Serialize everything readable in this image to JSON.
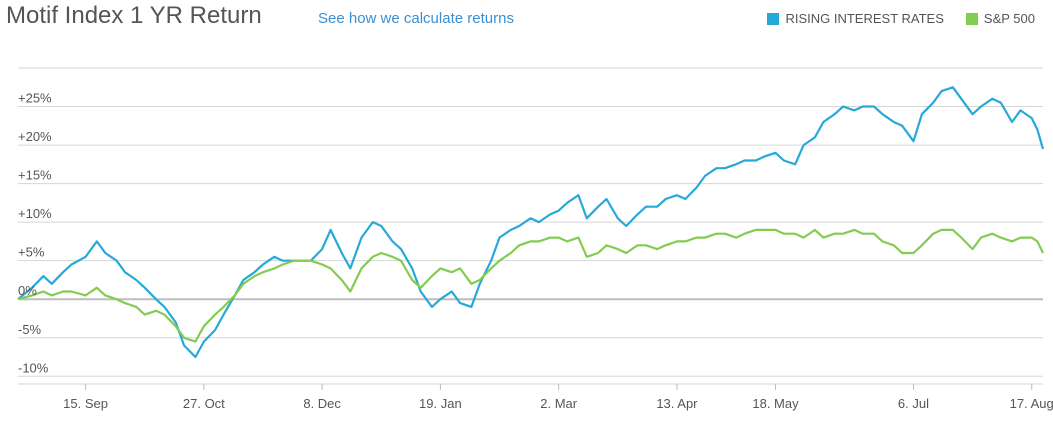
{
  "header": {
    "title": "Motif Index 1 YR Return",
    "link": "See how we calculate returns"
  },
  "colors": {
    "rising": "#27a9d8",
    "sp500": "#82cc52",
    "grid": "#d6d6d6",
    "zero_line": "#bdbdbd"
  },
  "chart_data": {
    "type": "line",
    "title": "Motif Index 1 YR Return",
    "xlabel": "",
    "ylabel": "",
    "ylim": [
      -11,
      30
    ],
    "yticks": [
      {
        "value": 25,
        "label": "+25%"
      },
      {
        "value": 20,
        "label": "+20%"
      },
      {
        "value": 15,
        "label": "+15%"
      },
      {
        "value": 10,
        "label": "+10%"
      },
      {
        "value": 5,
        "label": "+5%"
      },
      {
        "value": 0,
        "label": "0%"
      },
      {
        "value": -5,
        "label": "-5%"
      },
      {
        "value": -10,
        "label": "-10%"
      }
    ],
    "xrange": [
      "Aug 22",
      "Aug 21"
    ],
    "xticks": [
      {
        "date": "Sep 15",
        "label": "15. Sep"
      },
      {
        "date": "Oct 27",
        "label": "27. Oct"
      },
      {
        "date": "Dec 8",
        "label": "8. Dec"
      },
      {
        "date": "Jan 19",
        "label": "19. Jan"
      },
      {
        "date": "Mar 2",
        "label": "2. Mar"
      },
      {
        "date": "Apr 13",
        "label": "13. Apr"
      },
      {
        "date": "May 18",
        "label": "18. May"
      },
      {
        "date": "Jul 6",
        "label": "6. Jul"
      },
      {
        "date": "Aug 17",
        "label": "17. Aug"
      }
    ],
    "legend_position": "top-right",
    "grid": true,
    "series": [
      {
        "name": "RISING INTEREST RATES",
        "color": "#27a9d8",
        "points": [
          [
            "Aug 22",
            0
          ],
          [
            "Aug 27",
            1.5
          ],
          [
            "Aug 31",
            3
          ],
          [
            "Sep 3",
            2
          ],
          [
            "Sep 7",
            3.5
          ],
          [
            "Sep 10",
            4.5
          ],
          [
            "Sep 15",
            5.5
          ],
          [
            "Sep 19",
            7.5
          ],
          [
            "Sep 22",
            6
          ],
          [
            "Sep 26",
            5
          ],
          [
            "Sep 29",
            3.5
          ],
          [
            "Oct 3",
            2.5
          ],
          [
            "Oct 6",
            1.5
          ],
          [
            "Oct 10",
            0
          ],
          [
            "Oct 13",
            -1
          ],
          [
            "Oct 17",
            -3
          ],
          [
            "Oct 20",
            -6
          ],
          [
            "Oct 24",
            -7.5
          ],
          [
            "Oct 27",
            -5.5
          ],
          [
            "Oct 31",
            -4
          ],
          [
            "Nov 3",
            -2
          ],
          [
            "Nov 7",
            0.5
          ],
          [
            "Nov 10",
            2.5
          ],
          [
            "Nov 14",
            3.5
          ],
          [
            "Nov 17",
            4.5
          ],
          [
            "Nov 21",
            5.5
          ],
          [
            "Nov 24",
            5
          ],
          [
            "Nov 28",
            5
          ],
          [
            "Dec 1",
            5
          ],
          [
            "Dec 4",
            5
          ],
          [
            "Dec 8",
            6.5
          ],
          [
            "Dec 11",
            9
          ],
          [
            "Dec 15",
            6
          ],
          [
            "Dec 18",
            4
          ],
          [
            "Dec 22",
            8
          ],
          [
            "Dec 26",
            10
          ],
          [
            "Dec 29",
            9.5
          ],
          [
            "Jan 2",
            7.5
          ],
          [
            "Jan 5",
            6.5
          ],
          [
            "Jan 9",
            4
          ],
          [
            "Jan 12",
            1
          ],
          [
            "Jan 16",
            -1
          ],
          [
            "Jan 19",
            0
          ],
          [
            "Jan 23",
            1
          ],
          [
            "Jan 26",
            -0.5
          ],
          [
            "Jan 30",
            -1
          ],
          [
            "Feb 2",
            2
          ],
          [
            "Feb 6",
            5
          ],
          [
            "Feb 9",
            8
          ],
          [
            "Feb 13",
            9
          ],
          [
            "Feb 16",
            9.5
          ],
          [
            "Feb 20",
            10.5
          ],
          [
            "Feb 23",
            10
          ],
          [
            "Feb 27",
            11
          ],
          [
            "Mar 2",
            11.5
          ],
          [
            "Mar 5",
            12.5
          ],
          [
            "Mar 9",
            13.5
          ],
          [
            "Mar 12",
            10.5
          ],
          [
            "Mar 16",
            12
          ],
          [
            "Mar 19",
            13
          ],
          [
            "Mar 23",
            10.5
          ],
          [
            "Mar 26",
            9.5
          ],
          [
            "Mar 30",
            11
          ],
          [
            "Apr 2",
            12
          ],
          [
            "Apr 6",
            12
          ],
          [
            "Apr 9",
            13
          ],
          [
            "Apr 13",
            13.5
          ],
          [
            "Apr 16",
            13
          ],
          [
            "Apr 20",
            14.5
          ],
          [
            "Apr 23",
            16
          ],
          [
            "Apr 27",
            17
          ],
          [
            "Apr 30",
            17
          ],
          [
            "May 4",
            17.5
          ],
          [
            "May 7",
            18
          ],
          [
            "May 11",
            18
          ],
          [
            "May 14",
            18.5
          ],
          [
            "May 18",
            19
          ],
          [
            "May 21",
            18
          ],
          [
            "May 25",
            17.5
          ],
          [
            "May 28",
            20
          ],
          [
            "Jun 1",
            21
          ],
          [
            "Jun 4",
            23
          ],
          [
            "Jun 8",
            24
          ],
          [
            "Jun 11",
            25
          ],
          [
            "Jun 15",
            24.5
          ],
          [
            "Jun 18",
            25
          ],
          [
            "Jun 22",
            25
          ],
          [
            "Jun 25",
            24
          ],
          [
            "Jun 29",
            23
          ],
          [
            "Jul 2",
            22.5
          ],
          [
            "Jul 6",
            20.5
          ],
          [
            "Jul 9",
            24
          ],
          [
            "Jul 13",
            25.5
          ],
          [
            "Jul 16",
            27
          ],
          [
            "Jul 20",
            27.5
          ],
          [
            "Jul 23",
            26
          ],
          [
            "Jul 27",
            24
          ],
          [
            "Jul 30",
            25
          ],
          [
            "Aug 3",
            26
          ],
          [
            "Aug 6",
            25.5
          ],
          [
            "Aug 10",
            23
          ],
          [
            "Aug 13",
            24.5
          ],
          [
            "Aug 17",
            23.5
          ],
          [
            "Aug 19",
            22
          ],
          [
            "Aug 21",
            19.5
          ]
        ]
      },
      {
        "name": "S&P 500",
        "color": "#82cc52",
        "points": [
          [
            "Aug 22",
            0
          ],
          [
            "Aug 27",
            0.5
          ],
          [
            "Aug 31",
            1
          ],
          [
            "Sep 3",
            0.5
          ],
          [
            "Sep 7",
            1
          ],
          [
            "Sep 10",
            1
          ],
          [
            "Sep 15",
            0.5
          ],
          [
            "Sep 19",
            1.5
          ],
          [
            "Sep 22",
            0.5
          ],
          [
            "Sep 26",
            0
          ],
          [
            "Sep 29",
            -0.5
          ],
          [
            "Oct 3",
            -1
          ],
          [
            "Oct 6",
            -2
          ],
          [
            "Oct 10",
            -1.5
          ],
          [
            "Oct 13",
            -2
          ],
          [
            "Oct 17",
            -3.5
          ],
          [
            "Oct 20",
            -5
          ],
          [
            "Oct 24",
            -5.5
          ],
          [
            "Oct 27",
            -3.5
          ],
          [
            "Oct 31",
            -2
          ],
          [
            "Nov 3",
            -1
          ],
          [
            "Nov 7",
            0.5
          ],
          [
            "Nov 10",
            2
          ],
          [
            "Nov 14",
            3
          ],
          [
            "Nov 17",
            3.5
          ],
          [
            "Nov 21",
            4
          ],
          [
            "Nov 24",
            4.5
          ],
          [
            "Nov 28",
            5
          ],
          [
            "Dec 1",
            5
          ],
          [
            "Dec 4",
            5
          ],
          [
            "Dec 8",
            4.5
          ],
          [
            "Dec 11",
            4
          ],
          [
            "Dec 15",
            2.5
          ],
          [
            "Dec 18",
            1
          ],
          [
            "Dec 22",
            4
          ],
          [
            "Dec 26",
            5.5
          ],
          [
            "Dec 29",
            6
          ],
          [
            "Jan 2",
            5.5
          ],
          [
            "Jan 5",
            5
          ],
          [
            "Jan 9",
            2.5
          ],
          [
            "Jan 12",
            1.5
          ],
          [
            "Jan 16",
            3
          ],
          [
            "Jan 19",
            4
          ],
          [
            "Jan 23",
            3.5
          ],
          [
            "Jan 26",
            4
          ],
          [
            "Jan 30",
            2
          ],
          [
            "Feb 2",
            2.5
          ],
          [
            "Feb 6",
            4
          ],
          [
            "Feb 9",
            5
          ],
          [
            "Feb 13",
            6
          ],
          [
            "Feb 16",
            7
          ],
          [
            "Feb 20",
            7.5
          ],
          [
            "Feb 23",
            7.5
          ],
          [
            "Feb 27",
            8
          ],
          [
            "Mar 2",
            8
          ],
          [
            "Mar 5",
            7.5
          ],
          [
            "Mar 9",
            8
          ],
          [
            "Mar 12",
            5.5
          ],
          [
            "Mar 16",
            6
          ],
          [
            "Mar 19",
            7
          ],
          [
            "Mar 23",
            6.5
          ],
          [
            "Mar 26",
            6
          ],
          [
            "Mar 30",
            7
          ],
          [
            "Apr 2",
            7
          ],
          [
            "Apr 6",
            6.5
          ],
          [
            "Apr 9",
            7
          ],
          [
            "Apr 13",
            7.5
          ],
          [
            "Apr 16",
            7.5
          ],
          [
            "Apr 20",
            8
          ],
          [
            "Apr 23",
            8
          ],
          [
            "Apr 27",
            8.5
          ],
          [
            "Apr 30",
            8.5
          ],
          [
            "May 4",
            8
          ],
          [
            "May 7",
            8.5
          ],
          [
            "May 11",
            9
          ],
          [
            "May 14",
            9
          ],
          [
            "May 18",
            9
          ],
          [
            "May 21",
            8.5
          ],
          [
            "May 25",
            8.5
          ],
          [
            "May 28",
            8
          ],
          [
            "Jun 1",
            9
          ],
          [
            "Jun 4",
            8
          ],
          [
            "Jun 8",
            8.5
          ],
          [
            "Jun 11",
            8.5
          ],
          [
            "Jun 15",
            9
          ],
          [
            "Jun 18",
            8.5
          ],
          [
            "Jun 22",
            8.5
          ],
          [
            "Jun 25",
            7.5
          ],
          [
            "Jun 29",
            7
          ],
          [
            "Jul 2",
            6
          ],
          [
            "Jul 6",
            6
          ],
          [
            "Jul 9",
            7
          ],
          [
            "Jul 13",
            8.5
          ],
          [
            "Jul 16",
            9
          ],
          [
            "Jul 20",
            9
          ],
          [
            "Jul 23",
            8
          ],
          [
            "Jul 27",
            6.5
          ],
          [
            "Jul 30",
            8
          ],
          [
            "Aug 3",
            8.5
          ],
          [
            "Aug 6",
            8
          ],
          [
            "Aug 10",
            7.5
          ],
          [
            "Aug 13",
            8
          ],
          [
            "Aug 17",
            8
          ],
          [
            "Aug 19",
            7.5
          ],
          [
            "Aug 21",
            6
          ]
        ]
      }
    ]
  }
}
